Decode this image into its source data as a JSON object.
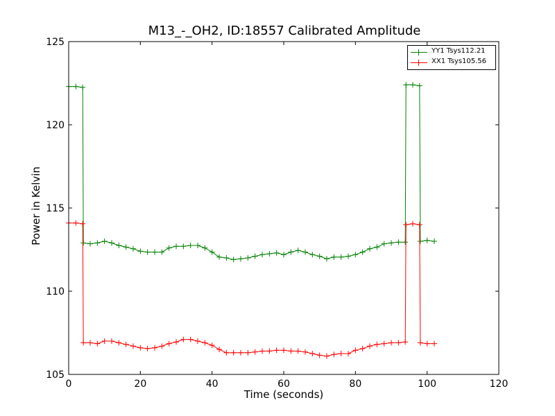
{
  "chart_data": {
    "type": "line",
    "title": "M13_-_OH2, ID:18557 Calibrated Amplitude",
    "xlabel": "Time (seconds)",
    "ylabel": "Power in Kelvin",
    "xlim": [
      0,
      120
    ],
    "ylim": [
      105,
      125
    ],
    "xticks": [
      "0",
      "20",
      "40",
      "60",
      "80",
      "100",
      "120"
    ],
    "yticks": [
      "105",
      "110",
      "115",
      "120",
      "125"
    ],
    "legend_position": "top-right",
    "grid": false,
    "series": [
      {
        "name": "YY1 Tsys112.21",
        "color": "#008000",
        "x": [
          0,
          2,
          3.9,
          4.1,
          6,
          8,
          10,
          12,
          14,
          16,
          18,
          20,
          22,
          24,
          26,
          28,
          30,
          32,
          34,
          36,
          38,
          40,
          42,
          44,
          46,
          48,
          50,
          52,
          54,
          56,
          58,
          60,
          62,
          64,
          66,
          68,
          70,
          72,
          74,
          76,
          78,
          80,
          82,
          84,
          86,
          88,
          90,
          92,
          93.9,
          94.1,
          96,
          97.9,
          98.1,
          100,
          102
        ],
        "y": [
          122.3,
          122.3,
          122.25,
          112.9,
          112.85,
          112.9,
          113.0,
          112.9,
          112.75,
          112.65,
          112.55,
          112.4,
          112.35,
          112.35,
          112.35,
          112.6,
          112.7,
          112.7,
          112.75,
          112.75,
          112.6,
          112.35,
          112.05,
          112.0,
          111.9,
          111.95,
          112.0,
          112.1,
          112.2,
          112.25,
          112.3,
          112.2,
          112.35,
          112.45,
          112.35,
          112.2,
          112.1,
          111.95,
          112.05,
          112.05,
          112.1,
          112.2,
          112.35,
          112.55,
          112.65,
          112.85,
          112.9,
          112.95,
          112.95,
          122.4,
          122.4,
          122.35,
          113.0,
          113.05,
          113.0
        ]
      },
      {
        "name": "XX1 Tsys105.56",
        "color": "#ff0000",
        "x": [
          0,
          2,
          3.9,
          4.1,
          6,
          8,
          10,
          12,
          14,
          16,
          18,
          20,
          22,
          24,
          26,
          28,
          30,
          32,
          34,
          36,
          38,
          40,
          42,
          44,
          46,
          48,
          50,
          52,
          54,
          56,
          58,
          60,
          62,
          64,
          66,
          68,
          70,
          72,
          74,
          76,
          78,
          80,
          82,
          84,
          86,
          88,
          90,
          92,
          93.9,
          94.1,
          96,
          97.9,
          98.1,
          100,
          102
        ],
        "y": [
          114.1,
          114.1,
          114.05,
          106.9,
          106.9,
          106.85,
          107.0,
          107.0,
          106.9,
          106.8,
          106.7,
          106.6,
          106.55,
          106.6,
          106.7,
          106.85,
          106.95,
          107.1,
          107.1,
          107.0,
          106.9,
          106.75,
          106.5,
          106.3,
          106.3,
          106.3,
          106.3,
          106.35,
          106.4,
          106.4,
          106.45,
          106.45,
          106.4,
          106.4,
          106.35,
          106.25,
          106.15,
          106.1,
          106.2,
          106.25,
          106.25,
          106.45,
          106.55,
          106.7,
          106.8,
          106.85,
          106.9,
          106.9,
          106.95,
          114.0,
          114.05,
          114.0,
          106.9,
          106.85,
          106.85
        ]
      }
    ]
  }
}
